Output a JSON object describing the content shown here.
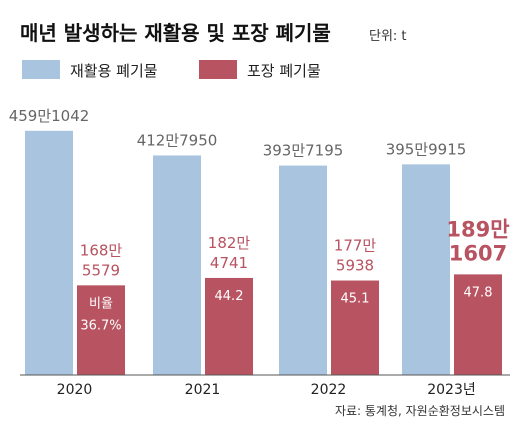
{
  "chart_data": {
    "type": "bar",
    "title": "매년 발생하는 재활용 및 포장 폐기물",
    "unit_label": "단위: t",
    "categories": [
      "2020",
      "2021",
      "2022",
      "2023년"
    ],
    "series": [
      {
        "name": "재활용 폐기물",
        "color": "#a9c4de",
        "values": [
          4591042,
          4127950,
          3937195,
          3959915
        ],
        "labels": [
          "459만1042",
          "412만7950",
          "393만7195",
          "395만9915"
        ]
      },
      {
        "name": "포장 폐기물",
        "color": "#b85361",
        "values": [
          1685579,
          1824741,
          1775938,
          1891607
        ],
        "labels": [
          [
            "168만",
            "5579"
          ],
          [
            "182만",
            "4741"
          ],
          [
            "177만",
            "5938"
          ],
          [
            "189만",
            "1607"
          ]
        ],
        "ratios": [
          "36.7%",
          "44.2",
          "45.1",
          "47.8"
        ]
      }
    ],
    "ratio_label": "비율",
    "label_color": "#b85361",
    "value_label_color": "#666666",
    "source": "자료: 통계청, 자원순환정보시스템",
    "ylim": [
      0,
      4700000
    ],
    "grid": false,
    "legend_position": "top-left"
  }
}
